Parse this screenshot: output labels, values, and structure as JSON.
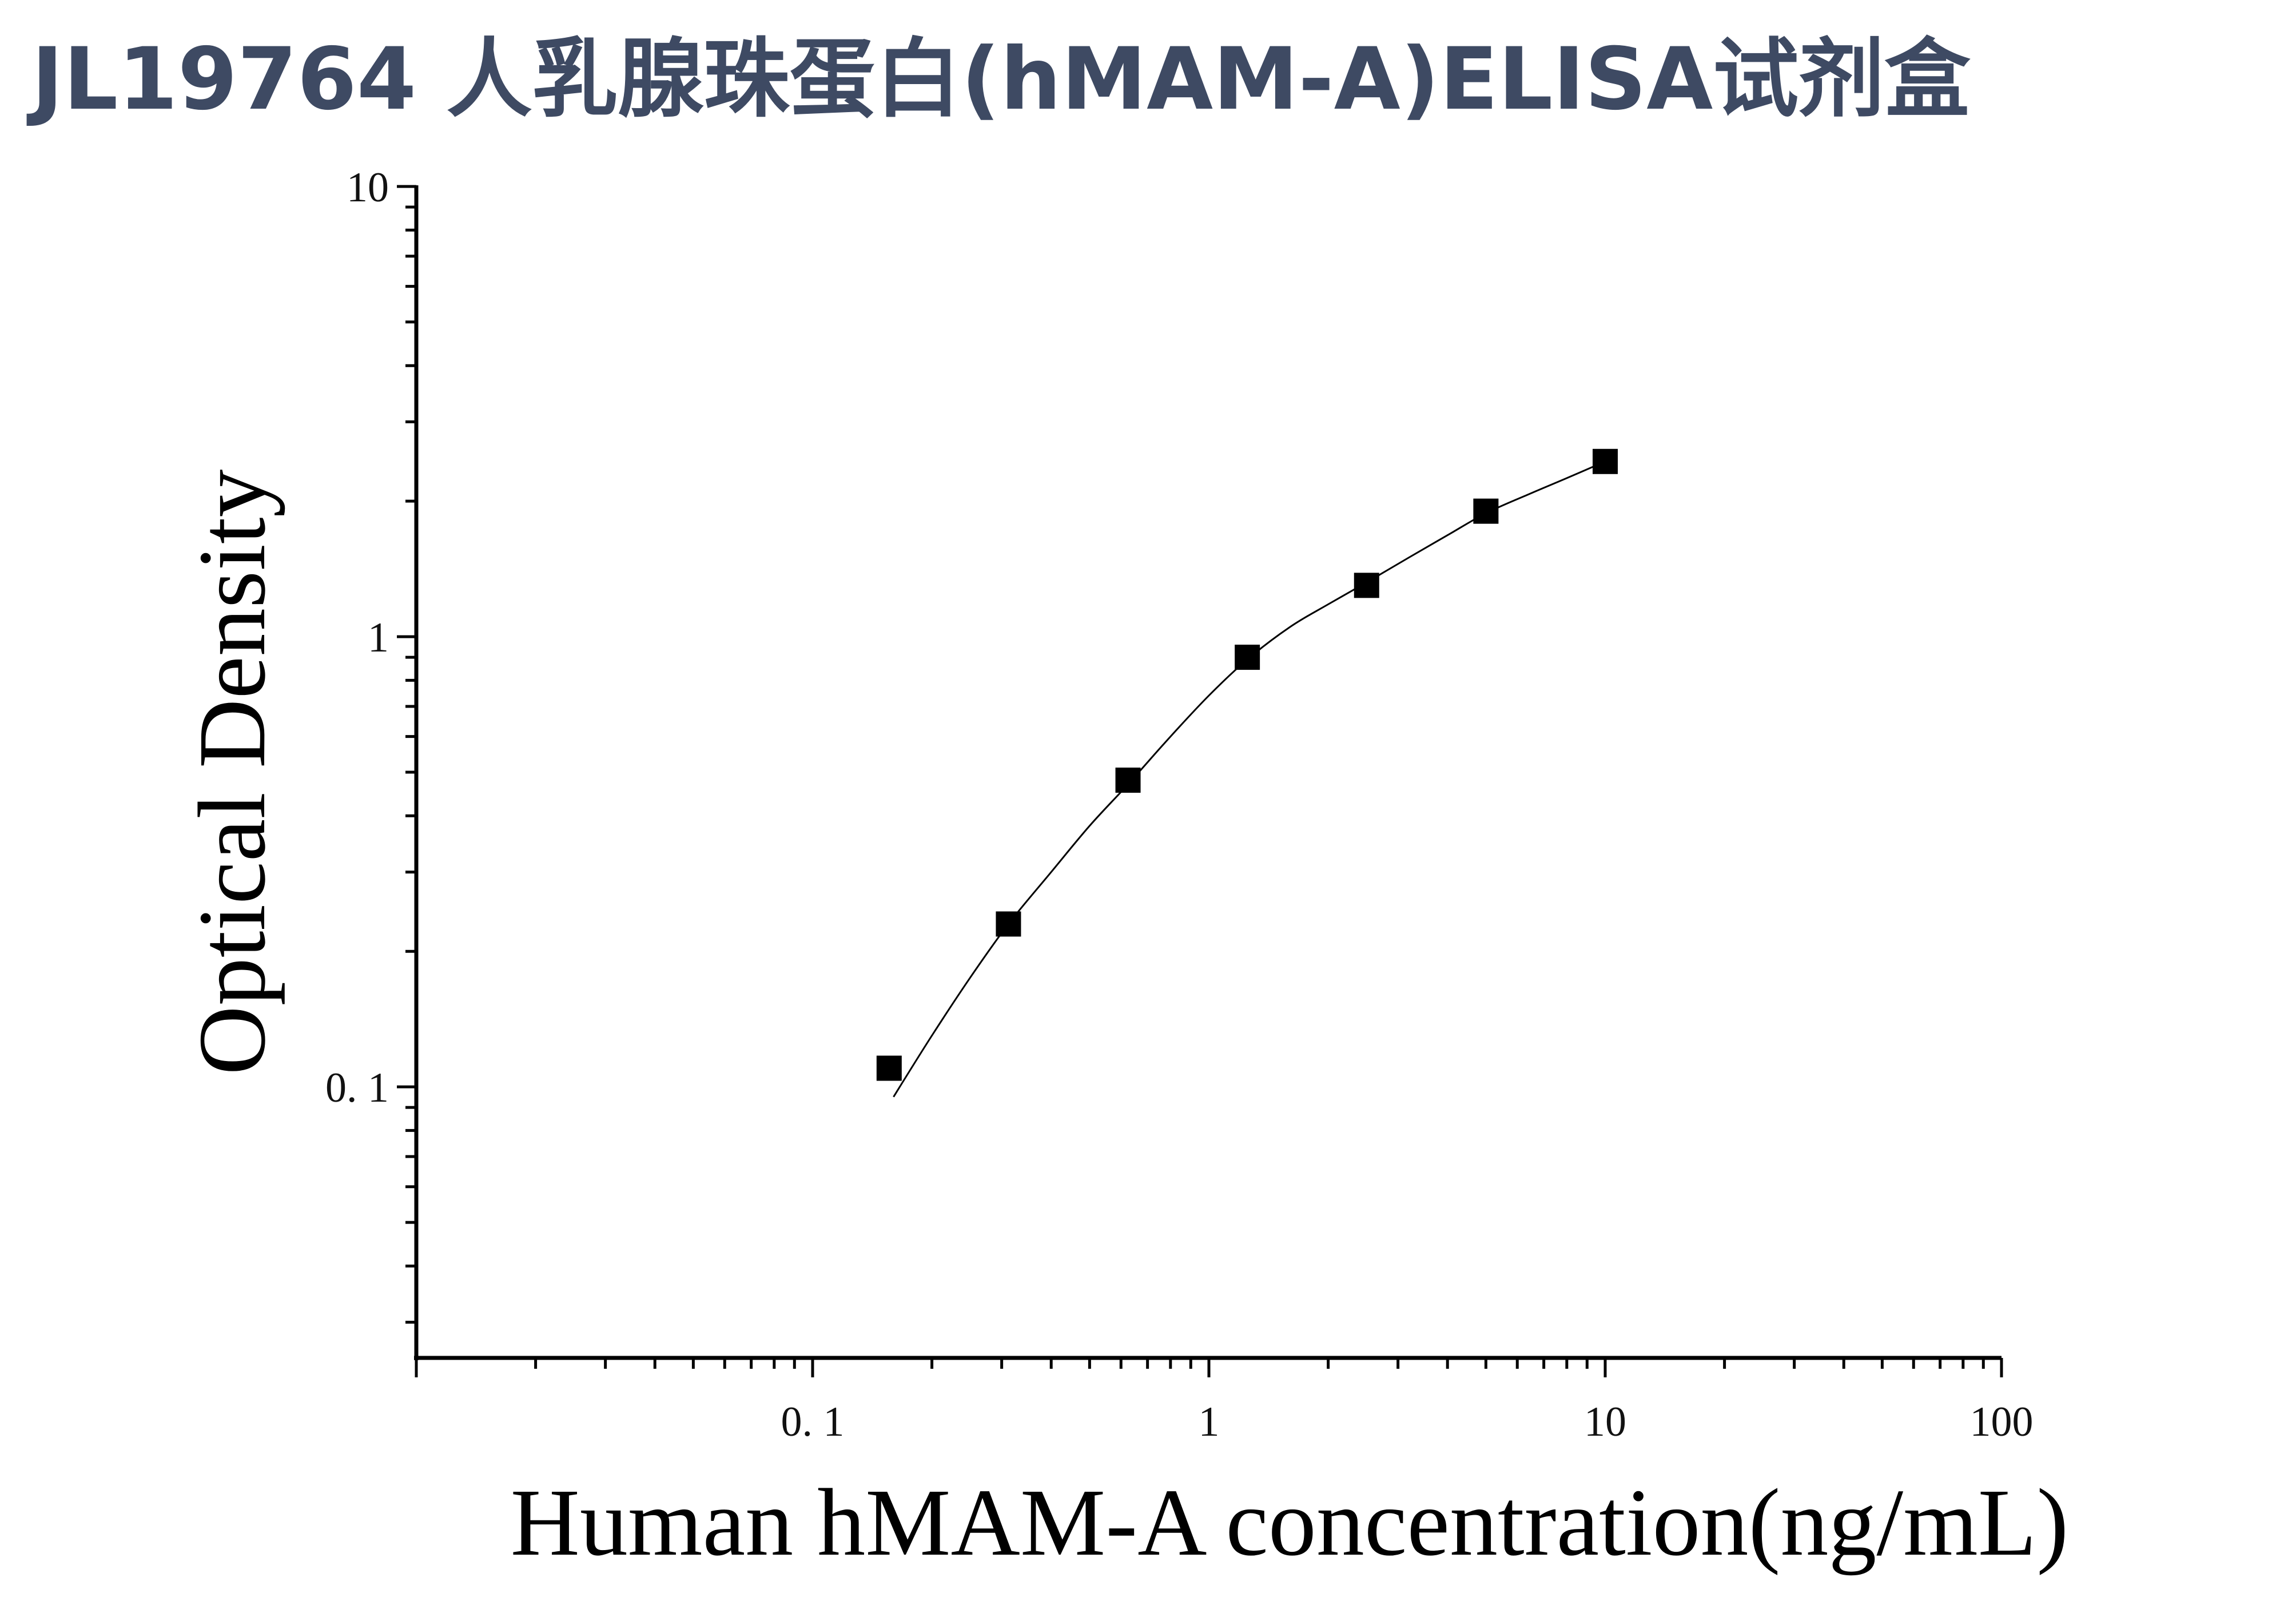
{
  "chart_data": {
    "type": "scatter",
    "title": "JL19764 人乳腺珠蛋白(hMAM-A)ELISA试剂盒",
    "xlabel": "Human hMAM-A concentration(ng/mL)",
    "ylabel": "Optical Density",
    "x_scale": "log",
    "y_scale": "log",
    "xlim": [
      0.01,
      100
    ],
    "ylim": [
      0.025,
      10
    ],
    "x_ticks": [
      {
        "value": 0.1,
        "label": "0. 1"
      },
      {
        "value": 1,
        "label": "1"
      },
      {
        "value": 10,
        "label": "10"
      },
      {
        "value": 100,
        "label": "100"
      }
    ],
    "y_ticks": [
      {
        "value": 10,
        "label": "10"
      },
      {
        "value": 1,
        "label": "1"
      },
      {
        "value": 0.1,
        "label": "0. 1"
      }
    ],
    "grid": false,
    "points": {
      "x": [
        0.156,
        0.312,
        0.625,
        1.25,
        2.5,
        5,
        10
      ],
      "y": [
        0.11,
        0.23,
        0.48,
        0.9,
        1.3,
        1.9,
        2.45
      ]
    },
    "fit_curve": {
      "x": [
        0.16,
        0.2,
        0.25,
        0.312,
        0.4,
        0.5,
        0.625,
        0.8,
        1,
        1.25,
        1.6,
        2,
        2.5,
        3.2,
        4,
        5,
        6.4,
        8,
        10
      ],
      "y": [
        0.095,
        0.13,
        0.175,
        0.23,
        0.3,
        0.38,
        0.47,
        0.6,
        0.74,
        0.89,
        1.05,
        1.18,
        1.32,
        1.5,
        1.68,
        1.88,
        2.07,
        2.25,
        2.45
      ]
    },
    "colors": {
      "title": "#3e4a63",
      "marker": "#000000",
      "axis": "#000000"
    }
  }
}
